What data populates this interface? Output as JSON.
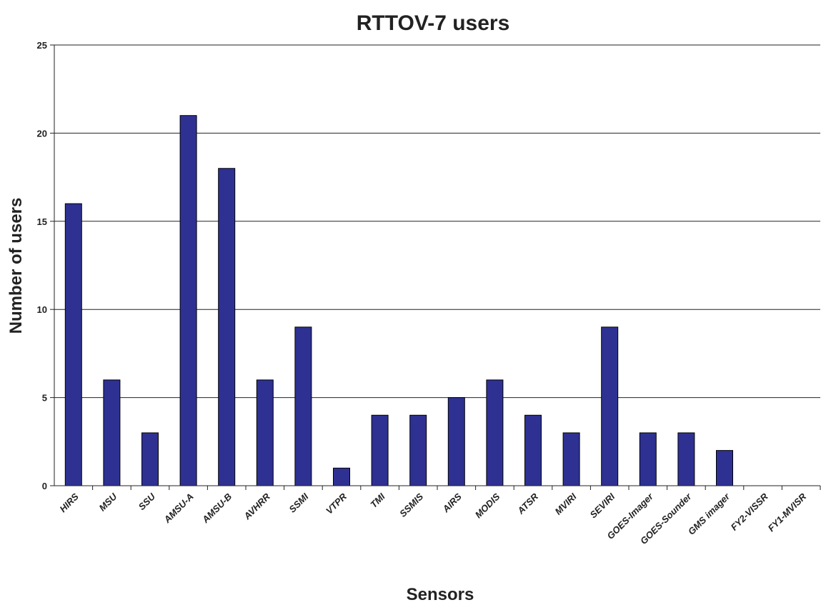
{
  "chart_data": {
    "type": "bar",
    "title": "RTTOV-7 users",
    "xlabel": "Sensors",
    "ylabel": "Number of users",
    "categories": [
      "HIRS",
      "MSU",
      "SSU",
      "AMSU-A",
      "AMSU-B",
      "AVHRR",
      "SSMI",
      "VTPR",
      "TMI",
      "SSMIS",
      "AIRS",
      "MODIS",
      "ATSR",
      "MVIRI",
      "SEVIRI",
      "GOES-Imager",
      "GOES-Sounder",
      "GMS imager",
      "FY2-VISSR",
      "FY1-MVISR"
    ],
    "values": [
      16,
      6,
      3,
      21,
      18,
      6,
      9,
      1,
      4,
      4,
      5,
      6,
      4,
      3,
      9,
      3,
      3,
      2,
      0,
      0
    ],
    "ylim": [
      0,
      25
    ],
    "yticks": [
      "0",
      "5",
      "10",
      "15",
      "20",
      "25"
    ],
    "grid": true,
    "legend": "none",
    "bar_color": "#2E3192"
  }
}
